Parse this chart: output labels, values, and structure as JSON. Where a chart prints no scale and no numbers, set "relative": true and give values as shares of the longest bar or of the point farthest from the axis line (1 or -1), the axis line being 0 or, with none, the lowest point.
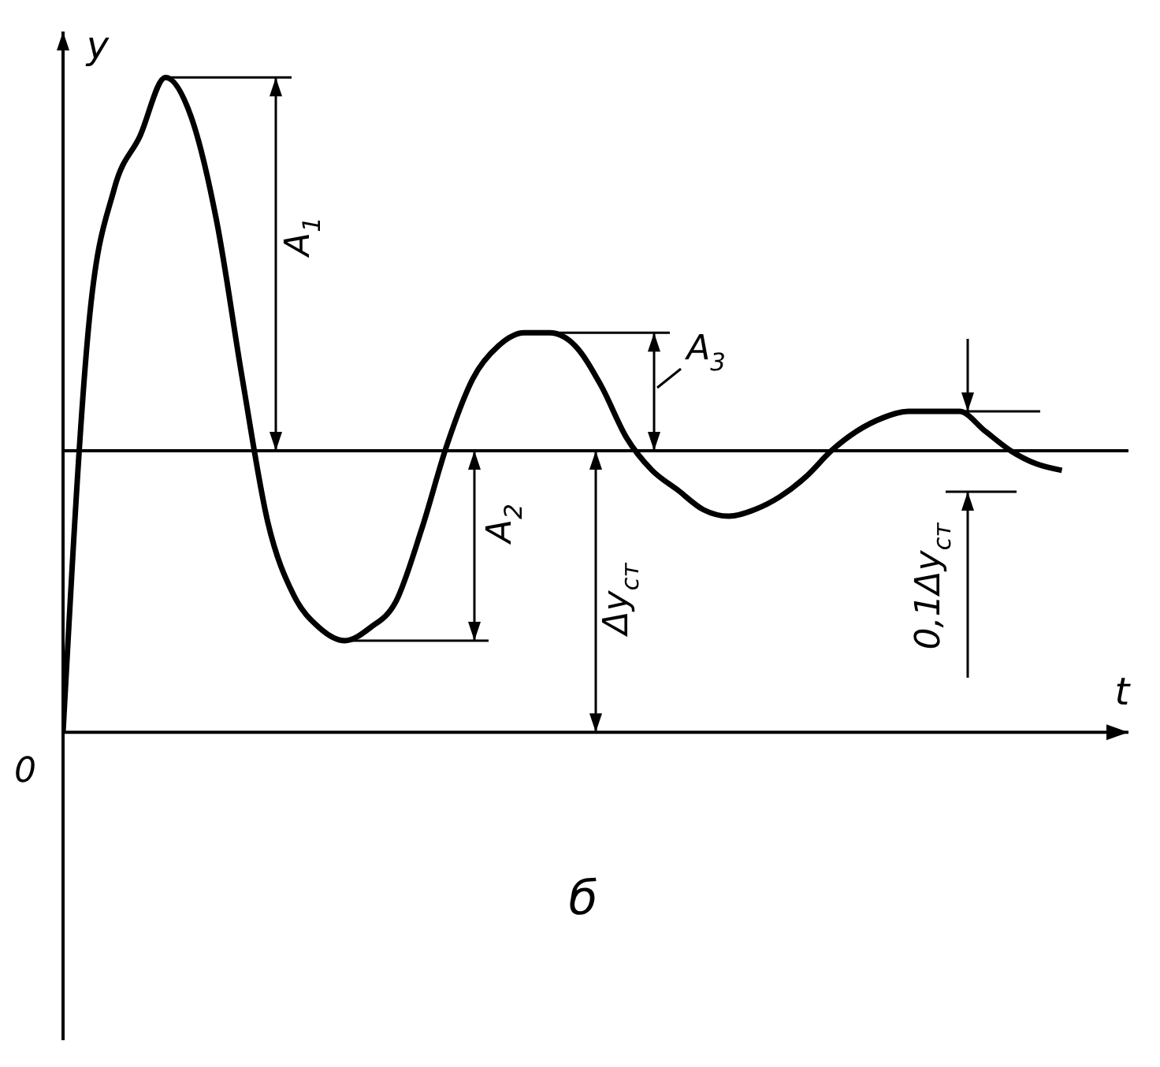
{
  "chart_data": {
    "type": "line",
    "relative": true,
    "xlabel": "t",
    "ylabel": "y",
    "categories": [
      null,
      null,
      null,
      null,
      null,
      null,
      null,
      null,
      null,
      null,
      null,
      null,
      null,
      null,
      null,
      null,
      null,
      null,
      null,
      null,
      null,
      null,
      null,
      null,
      null,
      null,
      null,
      null,
      null,
      null,
      null,
      null,
      null,
      null,
      null,
      null,
      null,
      null,
      null,
      null
    ],
    "series": [
      {
        "color": "#000000",
        "values": [
          0,
          0.62,
          0.83,
          0.91,
          1,
          0.94,
          0.78,
          0.54,
          0.32,
          0.21,
          0.16,
          0.14,
          0.16,
          0.2,
          0.31,
          0.44,
          0.54,
          0.59,
          0.61,
          0.61,
          0.59,
          0.53,
          0.45,
          0.4,
          0.37,
          0.34,
          0.33,
          0.34,
          0.36,
          0.39,
          0.43,
          0.46,
          0.48,
          0.49,
          0.49,
          0.49,
          0.46,
          0.43,
          0.41,
          0.4
        ]
      }
    ],
    "ref_lines": [
      {
        "axis": "y",
        "value": 0.43,
        "color": "#000000"
      }
    ],
    "annotations": [
      "A$_{1}$",
      "A$_{2}$",
      "A$_{3}$",
      "Δy$_{ст}$",
      "0,1Δy$_{ст}$",
      "0",
      "б"
    ]
  }
}
